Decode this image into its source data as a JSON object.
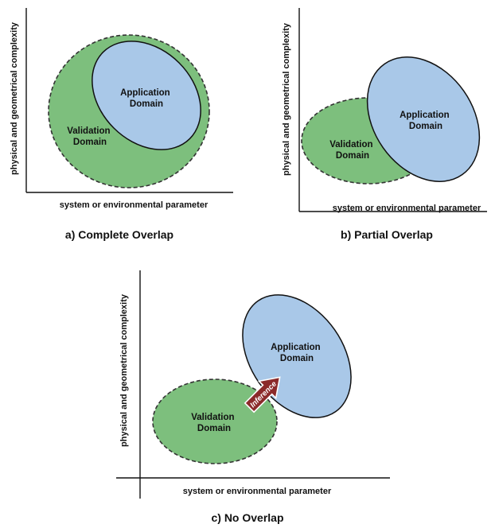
{
  "colors": {
    "validation_fill": "#7dbf7d",
    "application_fill": "#a9c8e8",
    "arrow_fill": "#8b2a2a",
    "axis": "#111111"
  },
  "panels": [
    {
      "caption": "a) Complete Overlap",
      "y_axis_label": "physical and geometrical complexity",
      "x_axis_label": "system or environmental parameter",
      "validation_label": [
        "Validation",
        "Domain"
      ],
      "application_label": [
        "Application",
        "Domain"
      ]
    },
    {
      "caption": "b) Partial Overlap",
      "y_axis_label": "physical and geometrical complexity",
      "x_axis_label": "system or environmental parameter",
      "validation_label": [
        "Validation",
        "Domain"
      ],
      "application_label": [
        "Application",
        "Domain"
      ]
    },
    {
      "caption": "c) No Overlap",
      "y_axis_label": "physical and geometrical complexity",
      "x_axis_label": "system or environmental parameter",
      "validation_label": [
        "Validation",
        "Domain"
      ],
      "application_label": [
        "Application",
        "Domain"
      ],
      "arrow_label": "Inference"
    }
  ]
}
